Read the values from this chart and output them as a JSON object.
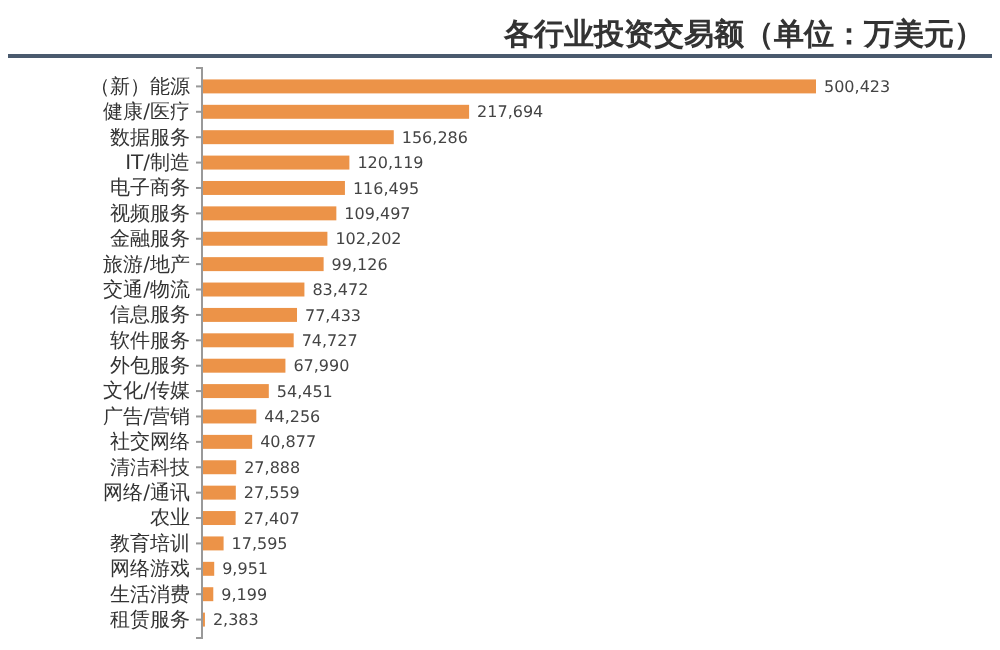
{
  "chart_data": {
    "type": "bar",
    "orientation": "horizontal",
    "title": "各行业投资交易额（单位：万美元）",
    "categories": [
      "（新）能源",
      "健康/医疗",
      "数据服务",
      "IT/制造",
      "电子商务",
      "视频服务",
      "金融服务",
      "旅游/地产",
      "交通/物流",
      "信息服务",
      "软件服务",
      "外包服务",
      "文化/传媒",
      "广告/营销",
      "社交网络",
      "清洁科技",
      "网络/通讯",
      "农业",
      "教育培训",
      "网络游戏",
      "生活消费",
      "租赁服务"
    ],
    "values": [
      500423,
      217694,
      156286,
      120119,
      116495,
      109497,
      102202,
      99126,
      83472,
      77433,
      74727,
      67990,
      54451,
      44256,
      40877,
      27888,
      27559,
      27407,
      17595,
      9951,
      9199,
      2383
    ],
    "value_labels": [
      "500,423",
      "217,694",
      "156,286",
      "120,119",
      "116,495",
      "109,497",
      "102,202",
      "99,126",
      "83,472",
      "77,433",
      "74,727",
      "67,990",
      "54,451",
      "44,256",
      "40,877",
      "27,888",
      "27,559",
      "27,407",
      "17,595",
      "9,951",
      "9,199",
      "2,383"
    ],
    "color": "#ec9348"
  }
}
